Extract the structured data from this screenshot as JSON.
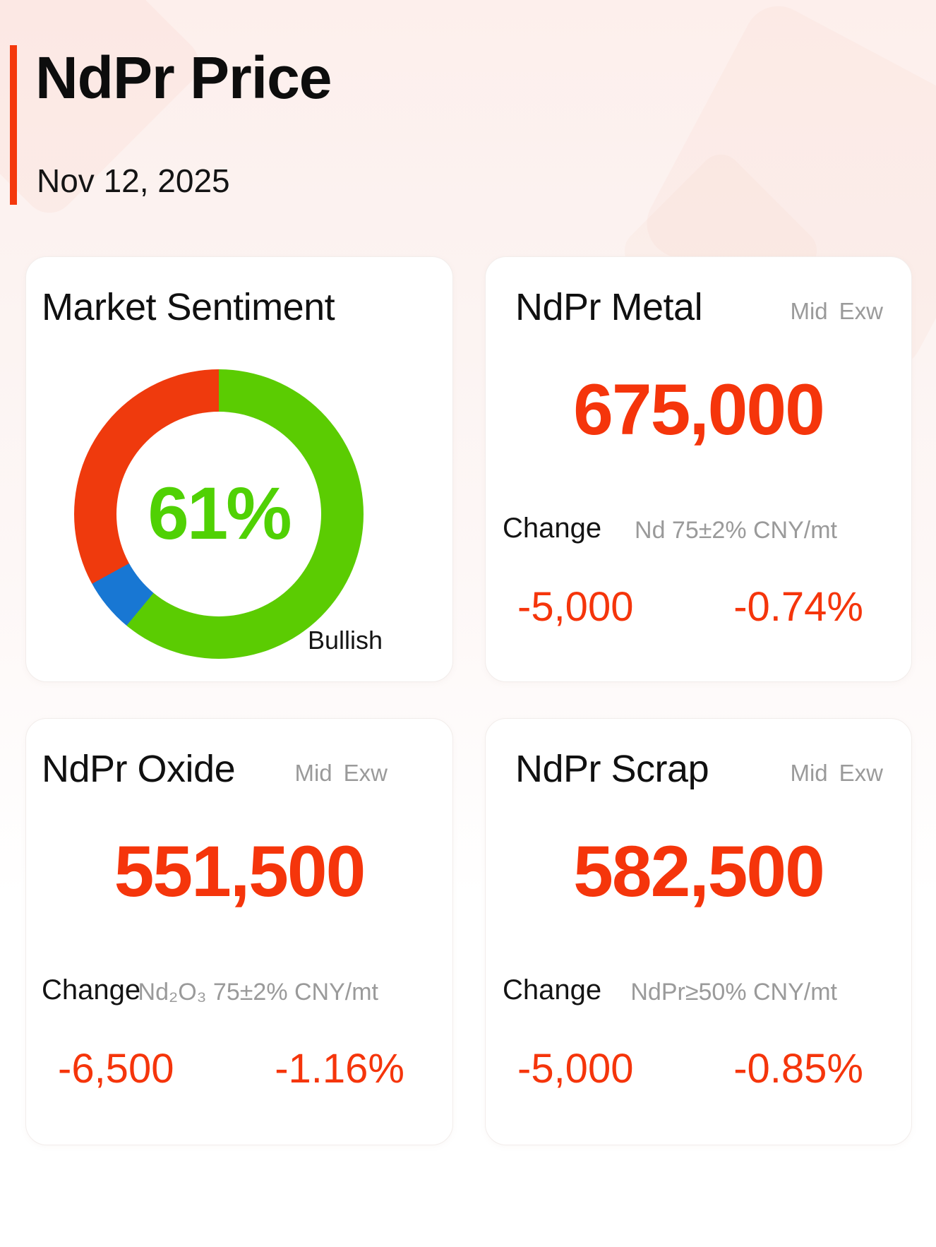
{
  "page": {
    "title": "NdPr Price",
    "date": "Nov 12, 2025"
  },
  "colors": {
    "accent_red": "#F4380C",
    "price_red": "#F5350B",
    "gray_text": "#9A9A9A",
    "bullish_green": "#5BCC02",
    "neutral_blue": "#1877D3",
    "bearish_red": "#EF3A0D",
    "percent_green": "#50D104"
  },
  "sentiment": {
    "title": "Market Sentiment",
    "percent": "61%",
    "label": "Bullish"
  },
  "chart_data": {
    "type": "pie",
    "title": "Market Sentiment",
    "donut": true,
    "categories": [
      "Bullish",
      "Neutral",
      "Bearish"
    ],
    "values": [
      61,
      6,
      33
    ],
    "colors": [
      "#5BCC02",
      "#1877D3",
      "#EF3A0D"
    ],
    "center_label": "61%",
    "annotation": "Bullish",
    "start_angle_deg": 0,
    "direction": "clockwise"
  },
  "price_cards": [
    {
      "id": "metal",
      "title": "NdPr Metal",
      "grade": [
        "Mid",
        "Exw"
      ],
      "price": "675,000",
      "change_label": "Change",
      "spec": "Nd 75±2% CNY/mt",
      "change_value": "-5,000",
      "change_percent": "-0.74%"
    },
    {
      "id": "oxide",
      "title": "NdPr Oxide",
      "grade": [
        "Mid",
        "Exw"
      ],
      "price": "551,500",
      "change_label": "Change",
      "spec": "Nd₂O₃ 75±2% CNY/mt",
      "change_value": "-6,500",
      "change_percent": "-1.16%"
    },
    {
      "id": "scrap",
      "title": "NdPr Scrap",
      "grade": [
        "Mid",
        "Exw"
      ],
      "price": "582,500",
      "change_label": "Change",
      "spec": "NdPr≥50% CNY/mt",
      "change_value": "-5,000",
      "change_percent": "-0.85%"
    }
  ]
}
